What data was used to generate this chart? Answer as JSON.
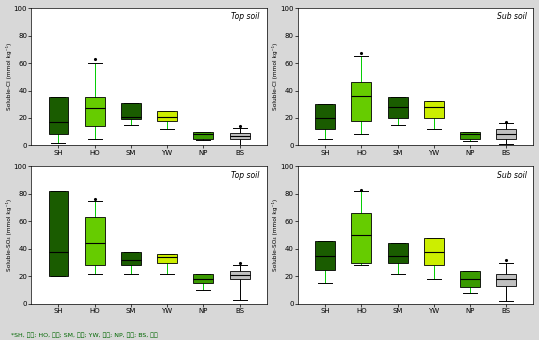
{
  "categories": [
    "SH",
    "HO",
    "SM",
    "YW",
    "NP",
    "BS"
  ],
  "colors": [
    "#1a5c00",
    "#66cc00",
    "#1a5c00",
    "#ccee00",
    "#3a9a00",
    "#c0c0c0"
  ],
  "whisker_colors": [
    "#00cc00",
    "#00cc00",
    "#00cc00",
    "#00cc00",
    "#00cc00",
    "#000000"
  ],
  "plots": [
    {
      "title": "Top soil",
      "ylabel": "Soluble-Cl (mmol kg⁻¹)",
      "ylim": [
        0,
        100
      ],
      "yticks": [
        0,
        20,
        40,
        60,
        80,
        100
      ],
      "boxes": [
        {
          "q1": 8,
          "median": 17,
          "q3": 35,
          "whislo": 2,
          "whishi": 35,
          "fliers": []
        },
        {
          "q1": 14,
          "median": 27,
          "q3": 35,
          "whislo": 5,
          "whishi": 60,
          "fliers": [
            63
          ]
        },
        {
          "q1": 19,
          "median": 21,
          "q3": 31,
          "whislo": 15,
          "whishi": 31,
          "fliers": []
        },
        {
          "q1": 18,
          "median": 21,
          "q3": 25,
          "whislo": 12,
          "whishi": 25,
          "fliers": []
        },
        {
          "q1": 5,
          "median": 8,
          "q3": 10,
          "whislo": 4,
          "whishi": 10,
          "fliers": []
        },
        {
          "q1": 5,
          "median": 7,
          "q3": 9,
          "whislo": 0,
          "whishi": 13,
          "fliers": [
            14
          ]
        }
      ]
    },
    {
      "title": "Sub soil",
      "ylabel": "Soluble-Cl (mmol kg⁻¹)",
      "ylim": [
        0,
        100
      ],
      "yticks": [
        0,
        20,
        40,
        60,
        80,
        100
      ],
      "boxes": [
        {
          "q1": 12,
          "median": 20,
          "q3": 30,
          "whislo": 5,
          "whishi": 30,
          "fliers": []
        },
        {
          "q1": 18,
          "median": 36,
          "q3": 46,
          "whislo": 8,
          "whishi": 65,
          "fliers": [
            67
          ]
        },
        {
          "q1": 20,
          "median": 28,
          "q3": 35,
          "whislo": 15,
          "whishi": 35,
          "fliers": []
        },
        {
          "q1": 20,
          "median": 28,
          "q3": 32,
          "whislo": 12,
          "whishi": 32,
          "fliers": []
        },
        {
          "q1": 5,
          "median": 8,
          "q3": 10,
          "whislo": 3,
          "whishi": 10,
          "fliers": []
        },
        {
          "q1": 5,
          "median": 8,
          "q3": 12,
          "whislo": 1,
          "whishi": 16,
          "fliers": [
            17
          ]
        }
      ]
    },
    {
      "title": "Top soil",
      "ylabel": "Soluble-SO₄ (mmol kg⁻¹)",
      "ylim": [
        0,
        100
      ],
      "yticks": [
        0,
        20,
        40,
        60,
        80,
        100
      ],
      "boxes": [
        {
          "q1": 20,
          "median": 38,
          "q3": 82,
          "whislo": 20,
          "whishi": 82,
          "fliers": []
        },
        {
          "q1": 28,
          "median": 44,
          "q3": 63,
          "whislo": 22,
          "whishi": 75,
          "fliers": [
            76
          ]
        },
        {
          "q1": 28,
          "median": 32,
          "q3": 38,
          "whislo": 22,
          "whishi": 38,
          "fliers": []
        },
        {
          "q1": 30,
          "median": 34,
          "q3": 36,
          "whislo": 22,
          "whishi": 36,
          "fliers": []
        },
        {
          "q1": 15,
          "median": 18,
          "q3": 22,
          "whislo": 10,
          "whishi": 22,
          "fliers": []
        },
        {
          "q1": 18,
          "median": 21,
          "q3": 24,
          "whislo": 3,
          "whishi": 28,
          "fliers": [
            30
          ]
        }
      ]
    },
    {
      "title": "Sub soil",
      "ylabel": "Soluble-SO₄ (mmol kg⁻¹)",
      "ylim": [
        0,
        100
      ],
      "yticks": [
        0,
        20,
        40,
        60,
        80,
        100
      ],
      "boxes": [
        {
          "q1": 25,
          "median": 35,
          "q3": 46,
          "whislo": 15,
          "whishi": 46,
          "fliers": []
        },
        {
          "q1": 30,
          "median": 50,
          "q3": 66,
          "whislo": 28,
          "whishi": 82,
          "fliers": [
            83
          ]
        },
        {
          "q1": 30,
          "median": 35,
          "q3": 44,
          "whislo": 22,
          "whishi": 44,
          "fliers": []
        },
        {
          "q1": 28,
          "median": 38,
          "q3": 48,
          "whislo": 18,
          "whishi": 48,
          "fliers": []
        },
        {
          "q1": 12,
          "median": 18,
          "q3": 24,
          "whislo": 8,
          "whishi": 24,
          "fliers": []
        },
        {
          "q1": 13,
          "median": 18,
          "q3": 22,
          "whislo": 2,
          "whishi": 30,
          "fliers": [
            32
          ]
        }
      ]
    }
  ],
  "footnote": "*SH, 시화; HO, 화옹; SM, 석문; YW, 이원; NP, 남포; BS, 부사",
  "background_color": "#ffffff",
  "outer_background": "#d8d8d8"
}
